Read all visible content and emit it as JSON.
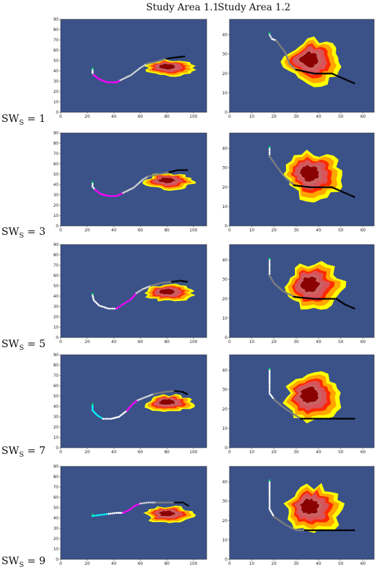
{
  "column_titles": [
    "Study Area 1.1",
    "Study Area 1.2"
  ],
  "row_label_prefix": "SW",
  "row_label_sub": "S",
  "row_label_eq": " = ",
  "colors": {
    "background": "#3b5289",
    "fire_zones": [
      "#ffff00",
      "#ffa500",
      "#ff2a00",
      "#d9535a",
      "#c86464",
      "#8b0000"
    ],
    "path": [
      "#ff00ff",
      "#d3d3d3",
      "#808080",
      "#000000",
      "#00ffff",
      "#ffffff"
    ],
    "start_marker": "#00cc66"
  },
  "chart_data": [
    {
      "type": "scatter",
      "panel": "Study Area 1.1",
      "row": "SWS = 1",
      "xlim": [
        0,
        110
      ],
      "ylim": [
        0,
        90
      ],
      "xticks": [
        0,
        20,
        40,
        60,
        80,
        100
      ],
      "yticks": [
        0,
        10,
        20,
        30,
        40,
        50,
        60,
        70,
        80,
        90
      ],
      "fire": {
        "cx": 82,
        "cy": 43,
        "rx": 18,
        "ry": 8
      },
      "path": [
        {
          "seg": "white",
          "pts": [
            [
              24,
              41
            ],
            [
              24,
              38
            ],
            [
              25,
              36
            ]
          ]
        },
        {
          "seg": "magenta",
          "pts": [
            [
              25,
              36
            ],
            [
              29,
              32
            ],
            [
              35,
              29
            ],
            [
              42,
              29
            ],
            [
              45,
              31
            ]
          ]
        },
        {
          "seg": "lightgray",
          "pts": [
            [
              45,
              31
            ],
            [
              53,
              36
            ],
            [
              60,
              43
            ],
            [
              65,
              47
            ]
          ]
        },
        {
          "seg": "gray",
          "pts": [
            [
              65,
              47
            ],
            [
              72,
              49
            ],
            [
              80,
              52
            ]
          ]
        },
        {
          "seg": "black",
          "pts": [
            [
              80,
              52
            ],
            [
              86,
              53
            ],
            [
              93,
              54
            ]
          ]
        }
      ]
    },
    {
      "type": "scatter",
      "panel": "Study Area 1.2",
      "row": "SWS = 1",
      "xlim": [
        0,
        65
      ],
      "ylim": [
        0,
        48
      ],
      "xticks": [
        0,
        10,
        20,
        30,
        40,
        50,
        60
      ],
      "yticks": [
        0,
        10,
        20,
        30,
        40
      ],
      "fire": {
        "cx": 38,
        "cy": 26,
        "rx": 13,
        "ry": 12
      },
      "path": [
        {
          "seg": "white",
          "pts": [
            [
              18,
              40
            ],
            [
              19,
              38
            ],
            [
              21,
              37
            ]
          ]
        },
        {
          "seg": "gray",
          "pts": [
            [
              21,
              37
            ],
            [
              25,
              31
            ],
            [
              27,
              25
            ],
            [
              30,
              22
            ]
          ]
        },
        {
          "seg": "black",
          "pts": [
            [
              30,
              22
            ],
            [
              38,
              20
            ],
            [
              46,
              20
            ],
            [
              52,
              17
            ],
            [
              56,
              15
            ]
          ]
        }
      ]
    },
    {
      "type": "scatter",
      "panel": "Study Area 1.1",
      "row": "SWS = 3",
      "xlim": [
        0,
        110
      ],
      "ylim": [
        0,
        90
      ],
      "xticks": [
        0,
        20,
        40,
        60,
        80,
        100
      ],
      "yticks": [
        0,
        10,
        20,
        30,
        40,
        50,
        60,
        70,
        80,
        90
      ],
      "fire": {
        "cx": 82,
        "cy": 43,
        "rx": 18,
        "ry": 8
      },
      "path": [
        {
          "seg": "white",
          "pts": [
            [
              24,
              41
            ],
            [
              24,
              38
            ],
            [
              26,
              35
            ]
          ]
        },
        {
          "seg": "magenta",
          "pts": [
            [
              26,
              35
            ],
            [
              30,
              31
            ],
            [
              36,
              29
            ],
            [
              42,
              29
            ],
            [
              47,
              32
            ]
          ]
        },
        {
          "seg": "lightgray",
          "pts": [
            [
              47,
              32
            ],
            [
              55,
              37
            ],
            [
              62,
              45
            ],
            [
              66,
              48
            ]
          ]
        },
        {
          "seg": "gray",
          "pts": [
            [
              66,
              48
            ],
            [
              74,
              50
            ],
            [
              82,
              52
            ]
          ]
        },
        {
          "seg": "black",
          "pts": [
            [
              82,
              52
            ],
            [
              88,
              54
            ],
            [
              95,
              54
            ]
          ]
        }
      ]
    },
    {
      "type": "scatter",
      "panel": "Study Area 1.2",
      "row": "SWS = 3",
      "xlim": [
        0,
        65
      ],
      "ylim": [
        0,
        48
      ],
      "xticks": [
        0,
        10,
        20,
        30,
        40,
        50,
        60
      ],
      "yticks": [
        0,
        10,
        20,
        30,
        40
      ],
      "fire": {
        "cx": 38,
        "cy": 26,
        "rx": 13,
        "ry": 12
      },
      "path": [
        {
          "seg": "white",
          "pts": [
            [
              18,
              40
            ],
            [
              18,
              38
            ],
            [
              18,
              36
            ]
          ]
        },
        {
          "seg": "gray",
          "pts": [
            [
              18,
              36
            ],
            [
              21,
              31
            ],
            [
              25,
              25
            ],
            [
              29,
              21
            ]
          ]
        },
        {
          "seg": "black",
          "pts": [
            [
              29,
              21
            ],
            [
              36,
              20
            ],
            [
              46,
              20
            ],
            [
              52,
              17
            ],
            [
              56,
              15
            ]
          ]
        }
      ]
    },
    {
      "type": "scatter",
      "panel": "Study Area 1.1",
      "row": "SWS = 5",
      "xlim": [
        0,
        110
      ],
      "ylim": [
        0,
        90
      ],
      "xticks": [
        0,
        20,
        40,
        60,
        80,
        100
      ],
      "yticks": [
        0,
        10,
        20,
        30,
        40,
        50,
        60,
        70,
        80,
        90
      ],
      "fire": {
        "cx": 82,
        "cy": 43,
        "rx": 18,
        "ry": 8
      },
      "path": [
        {
          "seg": "white",
          "pts": [
            [
              24,
              41
            ],
            [
              25,
              36
            ],
            [
              29,
              31
            ],
            [
              36,
              28
            ],
            [
              42,
              28
            ]
          ]
        },
        {
          "seg": "magenta",
          "pts": [
            [
              42,
              28
            ],
            [
              48,
              33
            ],
            [
              53,
              37
            ],
            [
              57,
              43
            ]
          ]
        },
        {
          "seg": "lightgray",
          "pts": [
            [
              57,
              43
            ],
            [
              62,
              47
            ],
            [
              68,
              50
            ]
          ]
        },
        {
          "seg": "gray",
          "pts": [
            [
              68,
              50
            ],
            [
              76,
              53
            ],
            [
              84,
              54
            ]
          ]
        },
        {
          "seg": "black",
          "pts": [
            [
              84,
              54
            ],
            [
              90,
              55
            ],
            [
              95,
              54
            ]
          ]
        }
      ]
    },
    {
      "type": "scatter",
      "panel": "Study Area 1.2",
      "row": "SWS = 5",
      "xlim": [
        0,
        65
      ],
      "ylim": [
        0,
        48
      ],
      "xticks": [
        0,
        10,
        20,
        30,
        40,
        50,
        60
      ],
      "yticks": [
        0,
        10,
        20,
        30,
        40
      ],
      "fire": {
        "cx": 38,
        "cy": 26,
        "rx": 13,
        "ry": 12
      },
      "path": [
        {
          "seg": "white",
          "pts": [
            [
              18,
              40
            ],
            [
              18,
              36
            ],
            [
              18,
              32
            ]
          ]
        },
        {
          "seg": "gray",
          "pts": [
            [
              18,
              32
            ],
            [
              20,
              28
            ],
            [
              24,
              24
            ],
            [
              29,
              21
            ]
          ]
        },
        {
          "seg": "black",
          "pts": [
            [
              29,
              21
            ],
            [
              38,
              20
            ],
            [
              48,
              20
            ],
            [
              52,
              17
            ],
            [
              56,
              15
            ]
          ]
        }
      ]
    },
    {
      "type": "scatter",
      "panel": "Study Area 1.1",
      "row": "SWS = 7",
      "xlim": [
        0,
        110
      ],
      "ylim": [
        0,
        90
      ],
      "xticks": [
        0,
        20,
        40,
        60,
        80,
        100
      ],
      "yticks": [
        0,
        10,
        20,
        30,
        40,
        50,
        60,
        70,
        80,
        90
      ],
      "fire": {
        "cx": 82,
        "cy": 43,
        "rx": 18,
        "ry": 8
      },
      "path": [
        {
          "seg": "cyan",
          "pts": [
            [
              24,
              41
            ],
            [
              24,
              36
            ],
            [
              28,
              31
            ],
            [
              32,
              28
            ]
          ]
        },
        {
          "seg": "white",
          "pts": [
            [
              32,
              28
            ],
            [
              38,
              28
            ],
            [
              44,
              30
            ],
            [
              50,
              36
            ]
          ]
        },
        {
          "seg": "magenta",
          "pts": [
            [
              50,
              36
            ],
            [
              54,
              42
            ],
            [
              58,
              46
            ]
          ]
        },
        {
          "seg": "lightgray",
          "pts": [
            [
              58,
              46
            ],
            [
              64,
              49
            ],
            [
              70,
              52
            ]
          ]
        },
        {
          "seg": "gray",
          "pts": [
            [
              70,
              52
            ],
            [
              78,
              54
            ],
            [
              86,
              55
            ]
          ]
        },
        {
          "seg": "black",
          "pts": [
            [
              86,
              55
            ],
            [
              92,
              54
            ],
            [
              95,
              52
            ]
          ]
        }
      ]
    },
    {
      "type": "scatter",
      "panel": "Study Area 1.2",
      "row": "SWS = 7",
      "xlim": [
        0,
        65
      ],
      "ylim": [
        0,
        48
      ],
      "xticks": [
        0,
        10,
        20,
        30,
        40,
        50,
        60
      ],
      "yticks": [
        0,
        10,
        20,
        30,
        40
      ],
      "fire": {
        "cx": 38,
        "cy": 26,
        "rx": 13,
        "ry": 12
      },
      "path": [
        {
          "seg": "white",
          "pts": [
            [
              18,
              40
            ],
            [
              18,
              33
            ],
            [
              18,
              28
            ],
            [
              20,
              25
            ]
          ]
        },
        {
          "seg": "gray",
          "pts": [
            [
              20,
              25
            ],
            [
              24,
              21
            ],
            [
              28,
              18
            ],
            [
              32,
              15
            ]
          ]
        },
        {
          "seg": "black",
          "pts": [
            [
              32,
              15
            ],
            [
              40,
              15
            ],
            [
              48,
              15
            ],
            [
              56,
              15
            ]
          ]
        }
      ]
    },
    {
      "type": "scatter",
      "panel": "Study Area 1.1",
      "row": "SWS = 9",
      "xlim": [
        0,
        110
      ],
      "ylim": [
        0,
        90
      ],
      "xticks": [
        0,
        20,
        40,
        60,
        80,
        100
      ],
      "yticks": [
        0,
        10,
        20,
        30,
        40,
        50,
        60,
        70,
        80,
        90
      ],
      "fire": {
        "cx": 82,
        "cy": 43,
        "rx": 18,
        "ry": 8
      },
      "path": [
        {
          "seg": "cyan",
          "pts": [
            [
              24,
              42
            ],
            [
              30,
              43
            ],
            [
              36,
              44
            ]
          ]
        },
        {
          "seg": "white",
          "pts": [
            [
              36,
              44
            ],
            [
              42,
              45
            ],
            [
              47,
              45
            ]
          ]
        },
        {
          "seg": "magenta",
          "pts": [
            [
              47,
              45
            ],
            [
              52,
              48
            ],
            [
              56,
              52
            ],
            [
              60,
              54
            ]
          ]
        },
        {
          "seg": "lightgray",
          "pts": [
            [
              60,
              54
            ],
            [
              66,
              55
            ],
            [
              72,
              55
            ]
          ]
        },
        {
          "seg": "gray",
          "pts": [
            [
              72,
              55
            ],
            [
              80,
              55
            ],
            [
              86,
              55
            ]
          ]
        },
        {
          "seg": "black",
          "pts": [
            [
              86,
              55
            ],
            [
              92,
              55
            ],
            [
              96,
              52
            ]
          ]
        }
      ]
    },
    {
      "type": "scatter",
      "panel": "Study Area 1.2",
      "row": "SWS = 9",
      "xlim": [
        0,
        65
      ],
      "ylim": [
        0,
        48
      ],
      "xticks": [
        0,
        10,
        20,
        30,
        40,
        50,
        60
      ],
      "yticks": [
        0,
        10,
        20,
        30,
        40
      ],
      "fire": {
        "cx": 38,
        "cy": 26,
        "rx": 13,
        "ry": 12
      },
      "path": [
        {
          "seg": "white",
          "pts": [
            [
              18,
              40
            ],
            [
              18,
              32
            ],
            [
              18,
              26
            ],
            [
              20,
              22
            ]
          ]
        },
        {
          "seg": "gray",
          "pts": [
            [
              20,
              22
            ],
            [
              25,
              18
            ],
            [
              30,
              15
            ],
            [
              34,
              15
            ]
          ]
        },
        {
          "seg": "black",
          "pts": [
            [
              34,
              15
            ],
            [
              42,
              15
            ],
            [
              50,
              15
            ],
            [
              56,
              15
            ]
          ]
        }
      ]
    }
  ],
  "rows": [
    {
      "value": "1"
    },
    {
      "value": "3"
    },
    {
      "value": "5"
    },
    {
      "value": "7"
    },
    {
      "value": "9"
    }
  ]
}
